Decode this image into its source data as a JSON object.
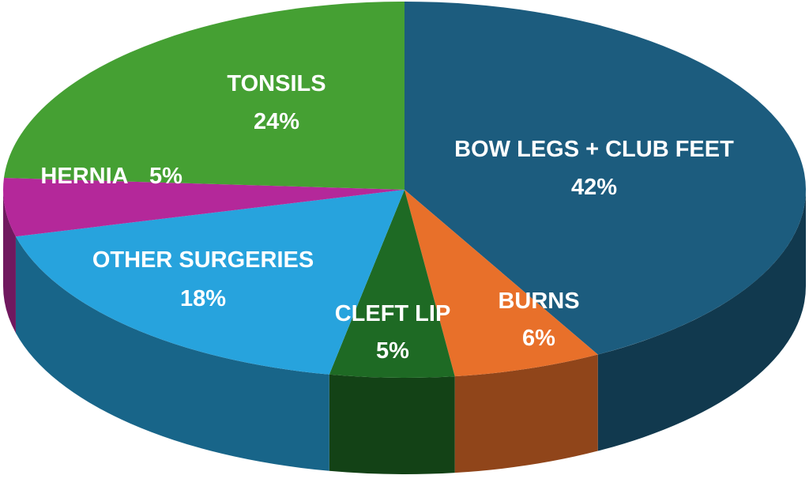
{
  "chart_data": {
    "type": "pie",
    "style": "3d",
    "slices": [
      {
        "label": "BOW LEGS + CLUB FEET",
        "value": 42,
        "value_label": "42%",
        "color": "#1c5c7e"
      },
      {
        "label": "BURNS",
        "value": 6,
        "value_label": "6%",
        "color": "#e8702a"
      },
      {
        "label": "CLEFT LIP",
        "value": 5,
        "value_label": "5%",
        "color": "#1e6a24"
      },
      {
        "label": "OTHER SURGERIES",
        "value": 18,
        "value_label": "18%",
        "color": "#27a3dd"
      },
      {
        "label": "HERNIA",
        "value": 5,
        "value_label": "5%",
        "color": "#b4289a"
      },
      {
        "label": "TONSILS",
        "value": 24,
        "value_label": "24%",
        "color": "#45a033"
      }
    ]
  }
}
